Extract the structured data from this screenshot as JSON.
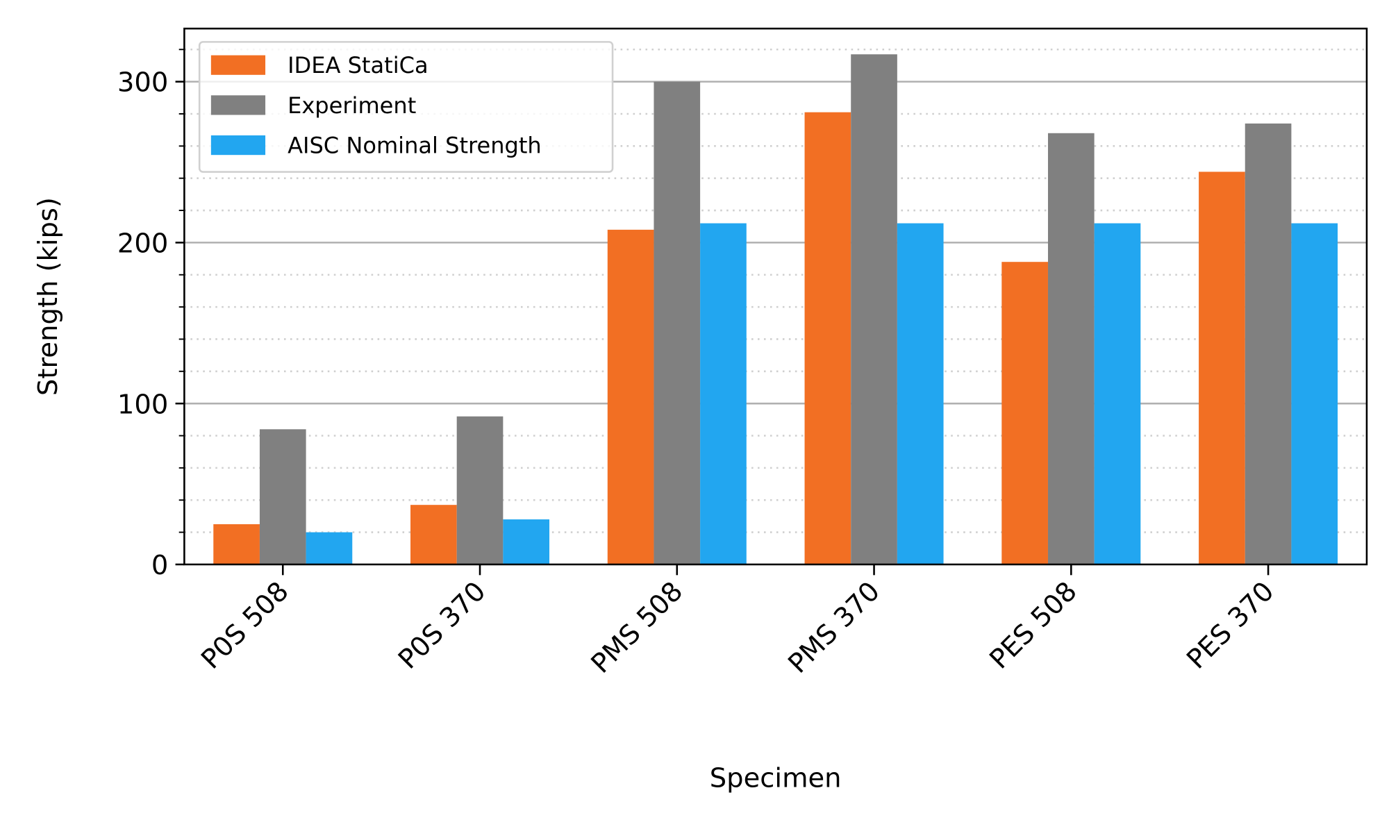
{
  "chart_data": {
    "type": "bar",
    "title": "",
    "xlabel": "Specimen",
    "ylabel": "Strength (kips)",
    "ylim": [
      0,
      333
    ],
    "yticks": [
      0,
      100,
      200,
      300
    ],
    "yticks_minor_step": 20,
    "grid": {
      "major": "solid",
      "minor": "dotted"
    },
    "legend_position": "top-left",
    "categories": [
      "P0S 508",
      "P0S 370",
      "PMS 508",
      "PMS 370",
      "PES 508",
      "PES 370"
    ],
    "series": [
      {
        "name": "IDEA StatiCa",
        "color": "#f26f23",
        "values": [
          25,
          37,
          208,
          281,
          188,
          244
        ]
      },
      {
        "name": "Experiment",
        "color": "#808080",
        "values": [
          84,
          92,
          300,
          317,
          268,
          274
        ]
      },
      {
        "name": "AISC Nominal Strength",
        "color": "#22a6f0",
        "values": [
          20,
          28,
          212,
          212,
          212,
          212
        ]
      }
    ]
  }
}
